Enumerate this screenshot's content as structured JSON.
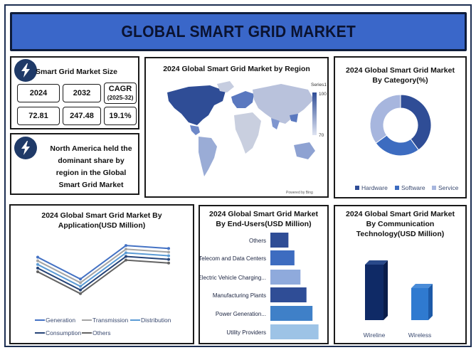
{
  "title": "GLOBAL SMART GRID MARKET",
  "market_size": {
    "heading": "Smart Grid Market Size",
    "year_start": "2024",
    "year_end": "2032",
    "cagr_label": "CAGR",
    "cagr_period": "(2025-32)",
    "value_start": "72.81",
    "value_end": "247.48",
    "cagr_value": "19.1%"
  },
  "region_note": "North America held the dominant share by region in the Global Smart Grid Market",
  "map_panel": {
    "title": "2024 Global Smart Grid Market by Region",
    "legend_series": "Series1",
    "legend_max": "100",
    "legend_min": "70",
    "credit": "Powered by Bing"
  },
  "colors": {
    "navy": "#1f3a68",
    "blue_dark": "#2f4d96",
    "blue_mid": "#3d6cc0",
    "blue_light": "#a7b6de",
    "title_bg": "#3a67c9"
  },
  "chart_data": [
    {
      "type": "pie",
      "title": "2024 Global Smart Grid Market By Category(%)",
      "categories": [
        "Hardware",
        "Software",
        "Service"
      ],
      "values": [
        40,
        25,
        35
      ],
      "colors": [
        "#2f4d96",
        "#3d6cc0",
        "#a7b6de"
      ],
      "legend": "bottom"
    },
    {
      "type": "line",
      "title": "2024 Global Smart Grid Market By Application(USD Million)",
      "x": [
        "",
        "",
        "",
        ""
      ],
      "series": [
        {
          "name": "Generation",
          "values": [
            88,
            58,
            104,
            100
          ],
          "color": "#4472c4"
        },
        {
          "name": "Transmission",
          "values": [
            83,
            53,
            99,
            95
          ],
          "color": "#a5a5a5"
        },
        {
          "name": "Distribution",
          "values": [
            78,
            48,
            94,
            90
          ],
          "color": "#5b9bd5"
        },
        {
          "name": "Consumption",
          "values": [
            73,
            43,
            89,
            85
          ],
          "color": "#264478"
        },
        {
          "name": "Others",
          "values": [
            68,
            38,
            84,
            80
          ],
          "color": "#636363"
        }
      ],
      "ylim": [
        30,
        110
      ],
      "legend": "bottom"
    },
    {
      "type": "bar",
      "orientation": "horizontal",
      "title": "2024 Global Smart Grid Market By End-Users(USD Million)",
      "categories": [
        "Others",
        "Telecom and Data Centers",
        "Electric Vehicle Charging...",
        "Manufacturing Plants",
        "Power Generation...",
        "Utility Providers"
      ],
      "values": [
        24,
        32,
        40,
        48,
        56,
        64
      ],
      "colors": [
        "#2f4d96",
        "#3d6cc0",
        "#8faadc",
        "#2f4d96",
        "#3f80c8",
        "#9dc3e6"
      ],
      "xlim": [
        0,
        70
      ]
    },
    {
      "type": "bar",
      "title": "2024 Global Smart Grid Market By Communication Technology(USD Million)",
      "categories": [
        "Wireline",
        "Wireless"
      ],
      "values": [
        78,
        45
      ],
      "colors": [
        "#0f2a66",
        "#2f7ad0"
      ],
      "ylim": [
        0,
        100
      ]
    }
  ]
}
